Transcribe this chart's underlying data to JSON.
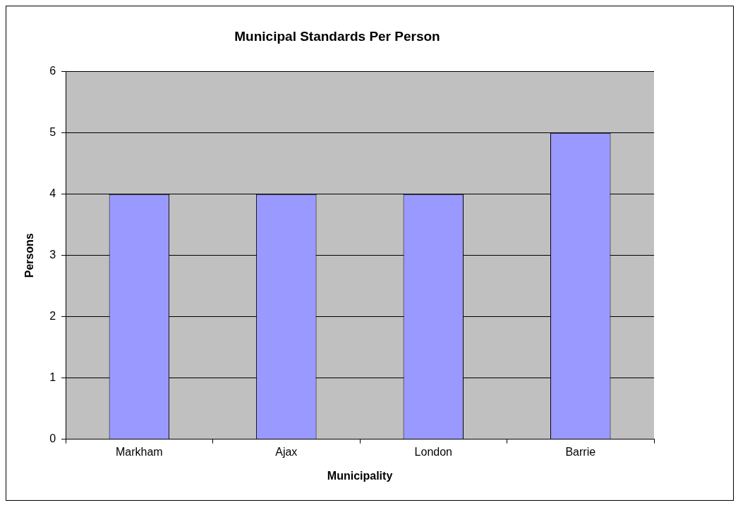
{
  "chart_data": {
    "type": "bar",
    "title": "Municipal Standards Per Person",
    "xlabel": "Municipality",
    "ylabel": "Persons",
    "categories": [
      "Markham",
      "Ajax",
      "London",
      "Barrie"
    ],
    "values": [
      4,
      4,
      4,
      5
    ],
    "color": "#9999ff",
    "ylim": [
      0,
      6
    ],
    "yticks": [
      0,
      1,
      2,
      3,
      4,
      5,
      6
    ],
    "grid": "y",
    "legend": false
  }
}
